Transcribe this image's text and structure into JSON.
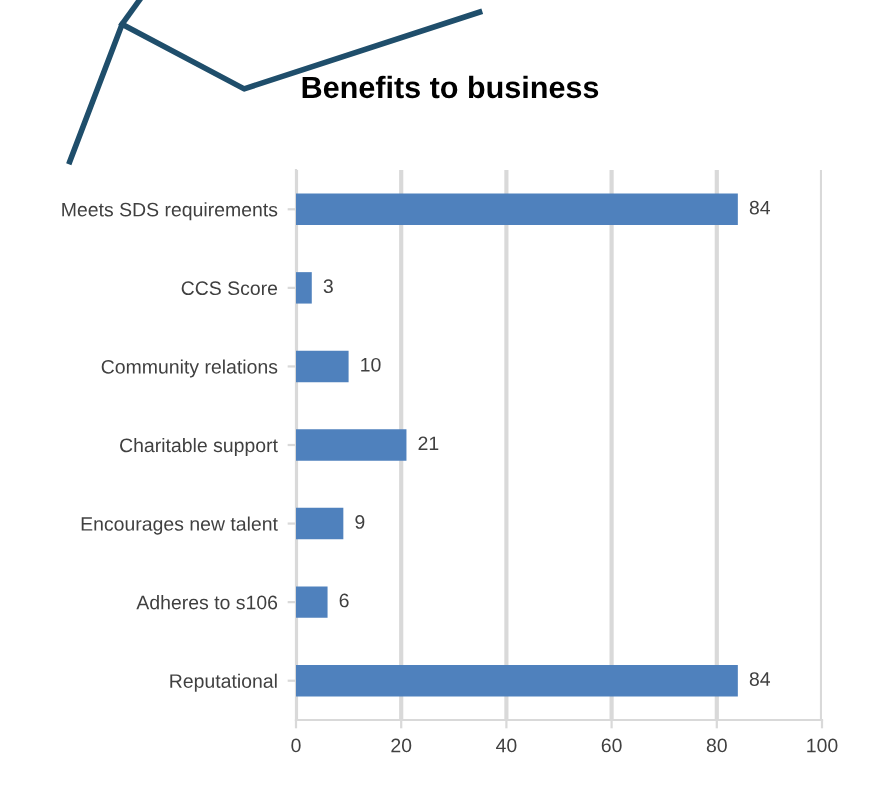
{
  "chart_data": {
    "type": "bar",
    "orientation": "horizontal",
    "title": "Benefits to business",
    "categories": [
      "Meets SDS requirements",
      "CCS Score",
      "Community relations",
      "Charitable support",
      "Encourages new talent",
      "Adheres to s106",
      "Reputational"
    ],
    "values": [
      84,
      3,
      10,
      21,
      9,
      6,
      84
    ],
    "color": "#4f81bd",
    "xlim": [
      0,
      100
    ],
    "xticks": [
      0,
      20,
      40,
      60,
      80,
      100
    ],
    "grid": "x",
    "data_labels": true
  }
}
